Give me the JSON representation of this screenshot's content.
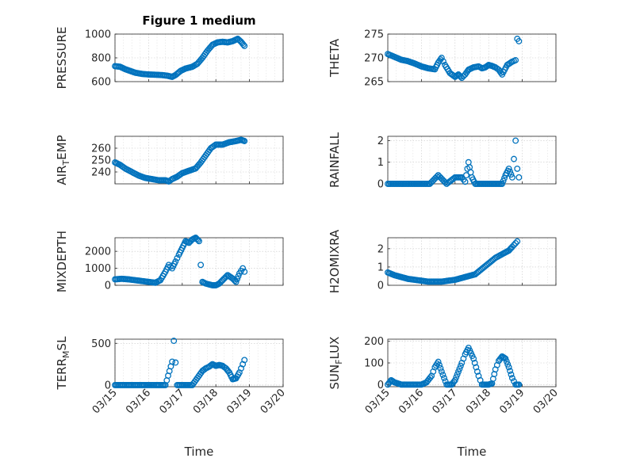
{
  "figure": {
    "title": "Figure 1 medium",
    "xlabel": "Time",
    "marker_color": "#0072BD"
  },
  "chart_data": [
    {
      "type": "scatter",
      "ylabel": "PRESSURE",
      "ylim": [
        600,
        1000
      ],
      "yticks": [
        600,
        800,
        1000
      ],
      "ytick_labels": [
        "600",
        "800",
        "1000"
      ],
      "xlim": [
        0,
        5
      ],
      "xticks": [
        0,
        1,
        2,
        3,
        4,
        5
      ],
      "xtick_labels": [
        "03/15",
        "03/16",
        "03/17",
        "03/18",
        "03/19",
        "03/20"
      ],
      "x": [
        0,
        0.15,
        0.3,
        0.45,
        0.6,
        0.8,
        1.0,
        1.2,
        1.4,
        1.55,
        1.7,
        1.8,
        1.95,
        2.1,
        2.3,
        2.45,
        2.6,
        2.75,
        2.9,
        3.05,
        3.2,
        3.35,
        3.5,
        3.65,
        3.75,
        3.85
      ],
      "y": [
        730,
        725,
        705,
        690,
        675,
        665,
        660,
        658,
        655,
        650,
        640,
        655,
        690,
        710,
        725,
        750,
        800,
        860,
        910,
        930,
        935,
        930,
        940,
        960,
        935,
        900
      ]
    },
    {
      "type": "scatter",
      "ylabel": "THETA",
      "ylim": [
        265,
        275
      ],
      "yticks": [
        265,
        270,
        275
      ],
      "ytick_labels": [
        "265",
        "270",
        "275"
      ],
      "xlim": [
        0,
        5
      ],
      "xticks": [
        0,
        1,
        2,
        3,
        4,
        5
      ],
      "xtick_labels": [
        "03/15",
        "03/16",
        "03/17",
        "03/18",
        "03/19",
        "03/20"
      ],
      "x": [
        0,
        0.2,
        0.4,
        0.6,
        0.8,
        1.0,
        1.2,
        1.4,
        1.5,
        1.6,
        1.7,
        1.85,
        2.0,
        2.1,
        2.2,
        2.3,
        2.4,
        2.55,
        2.7,
        2.8,
        2.9,
        3.0,
        3.1,
        3.2,
        3.3,
        3.4,
        3.55,
        3.7,
        3.8,
        3.85,
        3.9
      ],
      "y": [
        270.8,
        270.2,
        269.6,
        269.3,
        268.8,
        268.2,
        267.8,
        267.6,
        269.0,
        270.0,
        268.5,
        266.8,
        266.0,
        266.5,
        265.8,
        266.5,
        267.5,
        268.0,
        268.2,
        267.8,
        268.0,
        268.5,
        268.3,
        268.0,
        267.5,
        266.5,
        268.5,
        269.2,
        269.5,
        274.0,
        273.5
      ]
    },
    {
      "type": "scatter",
      "ylabel": "AIR_TEMP",
      "ylim": [
        230,
        270
      ],
      "yticks": [
        240,
        250,
        260
      ],
      "ytick_labels": [
        "240",
        "250",
        "260"
      ],
      "xlim": [
        0,
        5
      ],
      "xticks": [
        0,
        1,
        2,
        3,
        4,
        5
      ],
      "xtick_labels": [
        "03/15",
        "03/16",
        "03/17",
        "03/18",
        "03/19",
        "03/20"
      ],
      "x": [
        0,
        0.15,
        0.3,
        0.5,
        0.7,
        0.9,
        1.1,
        1.3,
        1.5,
        1.6,
        1.7,
        1.85,
        2.0,
        2.2,
        2.4,
        2.55,
        2.7,
        2.85,
        3.0,
        3.2,
        3.4,
        3.6,
        3.75,
        3.85
      ],
      "y": [
        248,
        246,
        243,
        240,
        237,
        235,
        234,
        233,
        233,
        232,
        234,
        236,
        239,
        241,
        243,
        248,
        254,
        260,
        263,
        263,
        265,
        266,
        267,
        266
      ]
    },
    {
      "type": "scatter",
      "ylabel": "RAINFALL",
      "ylim": [
        0,
        2.2
      ],
      "yticks": [
        0,
        1,
        2
      ],
      "ytick_labels": [
        "0",
        "1",
        "2"
      ],
      "xlim": [
        0,
        5
      ],
      "xticks": [
        0,
        1,
        2,
        3,
        4,
        5
      ],
      "xtick_labels": [
        "03/15",
        "03/16",
        "03/17",
        "03/18",
        "03/19",
        "03/20"
      ],
      "x": [
        0,
        0.25,
        0.5,
        0.75,
        1.0,
        1.25,
        1.5,
        1.75,
        2.0,
        2.2,
        2.3,
        2.4,
        2.5,
        2.6,
        2.8,
        3.0,
        3.2,
        3.4,
        3.5,
        3.6,
        3.7,
        3.8,
        3.85,
        3.9
      ],
      "y": [
        0,
        0,
        0,
        0,
        0,
        0,
        0.4,
        0,
        0.3,
        0.3,
        0.1,
        1.0,
        0.3,
        0,
        0,
        0,
        0,
        0,
        0.4,
        0.7,
        0.3,
        2.0,
        0.7,
        0.3
      ]
    },
    {
      "type": "scatter",
      "ylabel": "MIXDEPTH",
      "ylim": [
        0,
        2800
      ],
      "yticks": [
        0,
        1000,
        2000
      ],
      "ytick_labels": [
        "0",
        "1000",
        "2000"
      ],
      "xlim": [
        0,
        5
      ],
      "xticks": [
        0,
        1,
        2,
        3,
        4,
        5
      ],
      "xtick_labels": [
        "03/15",
        "03/16",
        "03/17",
        "03/18",
        "03/19",
        "03/20"
      ],
      "x": [
        0,
        0.2,
        0.4,
        0.6,
        0.8,
        1.0,
        1.2,
        1.35,
        1.5,
        1.6,
        1.7,
        1.8,
        1.9,
        2.0,
        2.1,
        2.2,
        2.3,
        2.4,
        2.5,
        2.55,
        2.6,
        2.7,
        2.8,
        2.9,
        3.0,
        3.1,
        3.2,
        3.35,
        3.5,
        3.6,
        3.7,
        3.8,
        3.85
      ],
      "y": [
        350,
        380,
        350,
        300,
        250,
        200,
        150,
        300,
        800,
        1200,
        1000,
        1400,
        1800,
        2200,
        2600,
        2500,
        2700,
        2800,
        2600,
        1200,
        200,
        100,
        50,
        0,
        0,
        100,
        300,
        600,
        400,
        200,
        700,
        1000,
        800
      ]
    },
    {
      "type": "scatter",
      "ylabel": "H2OMIXRA",
      "ylim": [
        0,
        2.6
      ],
      "yticks": [
        0,
        1,
        2
      ],
      "ytick_labels": [
        "0",
        "1",
        "2"
      ],
      "xlim": [
        0,
        5
      ],
      "xticks": [
        0,
        1,
        2,
        3,
        4,
        5
      ],
      "xtick_labels": [
        "03/15",
        "03/16",
        "03/17",
        "03/18",
        "03/19",
        "03/20"
      ],
      "x": [
        0,
        0.2,
        0.4,
        0.6,
        0.8,
        1.0,
        1.2,
        1.4,
        1.6,
        1.8,
        2.0,
        2.2,
        2.4,
        2.6,
        2.8,
        3.0,
        3.2,
        3.4,
        3.5,
        3.6,
        3.7,
        3.8,
        3.85
      ],
      "y": [
        0.7,
        0.55,
        0.45,
        0.35,
        0.3,
        0.25,
        0.2,
        0.2,
        0.2,
        0.25,
        0.3,
        0.4,
        0.5,
        0.6,
        0.9,
        1.2,
        1.5,
        1.7,
        1.8,
        1.9,
        2.1,
        2.3,
        2.4
      ]
    },
    {
      "type": "scatter",
      "ylabel": "TERR_MSL",
      "ylim": [
        -20,
        550
      ],
      "yticks": [
        0,
        500
      ],
      "ytick_labels": [
        "0",
        "500"
      ],
      "xlim": [
        0,
        5
      ],
      "xticks": [
        0,
        1,
        2,
        3,
        4,
        5
      ],
      "xtick_labels": [
        "03/15",
        "03/16",
        "03/17",
        "03/18",
        "03/19",
        "03/20"
      ],
      "x": [
        0,
        0.3,
        0.6,
        0.9,
        1.2,
        1.5,
        1.7,
        1.75,
        1.8,
        1.85,
        2.0,
        2.3,
        2.6,
        2.7,
        2.8,
        2.9,
        3.0,
        3.1,
        3.2,
        3.3,
        3.4,
        3.5,
        3.6,
        3.7,
        3.8,
        3.85
      ],
      "y": [
        0,
        0,
        0,
        0,
        0,
        0,
        280,
        530,
        270,
        0,
        0,
        0,
        170,
        200,
        220,
        250,
        230,
        240,
        230,
        200,
        150,
        70,
        80,
        150,
        250,
        300
      ]
    },
    {
      "type": "scatter",
      "ylabel": "SUN_FLUX",
      "ylim": [
        -10,
        210
      ],
      "yticks": [
        0,
        100,
        200
      ],
      "ytick_labels": [
        "0",
        "100",
        "200"
      ],
      "xlim": [
        0,
        5
      ],
      "xticks": [
        0,
        1,
        2,
        3,
        4,
        5
      ],
      "xtick_labels": [
        "03/15",
        "03/16",
        "03/17",
        "03/18",
        "03/19",
        "03/20"
      ],
      "x": [
        0,
        0.1,
        0.2,
        0.4,
        0.6,
        0.8,
        1.0,
        1.15,
        1.3,
        1.4,
        1.5,
        1.6,
        1.75,
        1.9,
        2.0,
        2.1,
        2.2,
        2.3,
        2.4,
        2.55,
        2.7,
        2.8,
        2.9,
        3.0,
        3.1,
        3.2,
        3.3,
        3.4,
        3.5,
        3.6,
        3.7,
        3.8,
        3.9
      ],
      "y": [
        0,
        20,
        10,
        0,
        0,
        0,
        0,
        10,
        40,
        80,
        105,
        60,
        0,
        0,
        20,
        60,
        100,
        140,
        170,
        120,
        40,
        0,
        0,
        0,
        5,
        70,
        110,
        130,
        120,
        80,
        30,
        0,
        0
      ]
    }
  ]
}
